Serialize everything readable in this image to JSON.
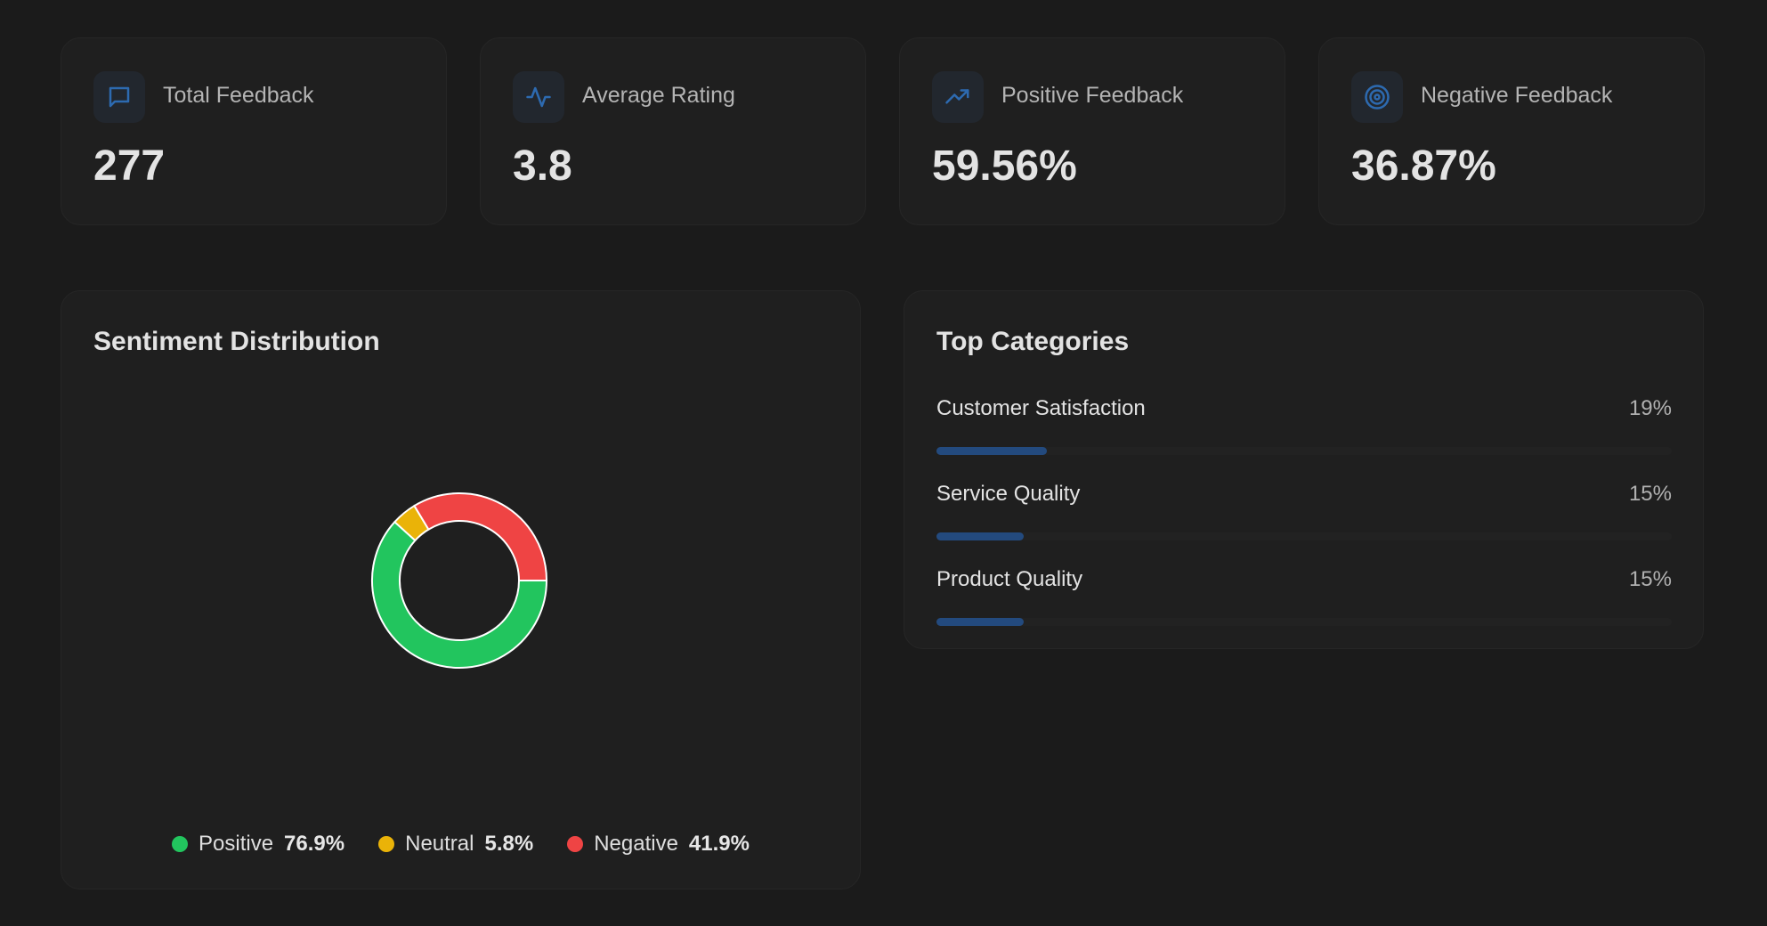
{
  "stats": [
    {
      "label": "Total Feedback",
      "value": "277",
      "icon": "message-square-icon"
    },
    {
      "label": "Average Rating",
      "value": "3.8",
      "icon": "activity-icon"
    },
    {
      "label": "Positive Feedback",
      "value": "59.56%",
      "icon": "trending-up-icon"
    },
    {
      "label": "Negative Feedback",
      "value": "36.87%",
      "icon": "target-icon"
    }
  ],
  "colors": {
    "accent": "#2d6ab0",
    "positive": "#22c55e",
    "neutral": "#eab308",
    "negative": "#ef4444",
    "bar": "#234a7e"
  },
  "sentiment": {
    "title": "Sentiment Distribution",
    "legend": [
      {
        "name": "Positive",
        "value": "76.9%"
      },
      {
        "name": "Neutral",
        "value": "5.8%"
      },
      {
        "name": "Negative",
        "value": "41.9%"
      }
    ]
  },
  "chart_data": {
    "type": "pie",
    "title": "Sentiment Distribution",
    "categories": [
      "Positive",
      "Neutral",
      "Negative"
    ],
    "values": [
      76.9,
      5.8,
      41.9
    ],
    "colors": [
      "#22c55e",
      "#eab308",
      "#ef4444"
    ],
    "legend": "bottom"
  },
  "categories": {
    "title": "Top Categories",
    "items": [
      {
        "name": "Customer Satisfaction",
        "percent": "19%",
        "fill": 0.15
      },
      {
        "name": "Service Quality",
        "percent": "15%",
        "fill": 0.119
      },
      {
        "name": "Product Quality",
        "percent": "15%",
        "fill": 0.119
      }
    ]
  }
}
